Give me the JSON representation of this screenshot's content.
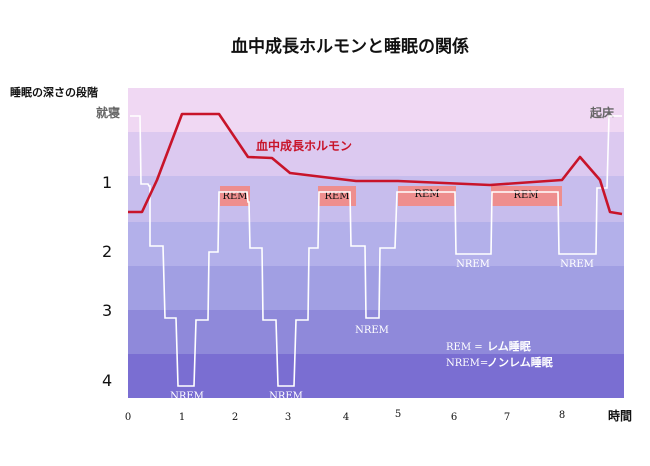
{
  "title": "血中成長ホルモンと睡眠の関係",
  "y_axis_label": "睡眠の深さの段階",
  "x_axis_label": "時間",
  "markers": {
    "sleep_onset": "就寝",
    "wake": "起床"
  },
  "hormone_label": "血中成長ホルモン",
  "stage_labels": [
    "1",
    "2",
    "3",
    "4"
  ],
  "hour_labels": [
    "0",
    "1",
    "2",
    "3",
    "4",
    "5",
    "6",
    "7",
    "8"
  ],
  "rem_blocks": [
    "REM",
    "REM",
    "REM",
    "REM"
  ],
  "nrem_labels": [
    "NREM",
    "NREM",
    "NREM",
    "NREM",
    "NREM"
  ],
  "legend": [
    {
      "key": "REM =",
      "value": "レム睡眠"
    },
    {
      "key": "NREM=",
      "value": "ノンレム睡眠"
    }
  ],
  "colors": {
    "band_top": "#f1d6f2",
    "band_bottom": "#7a6ed2",
    "hormone_line": "#c8142a",
    "rem_fill": "#ee8e8e",
    "hypnogram_line": "#ffffff"
  }
}
